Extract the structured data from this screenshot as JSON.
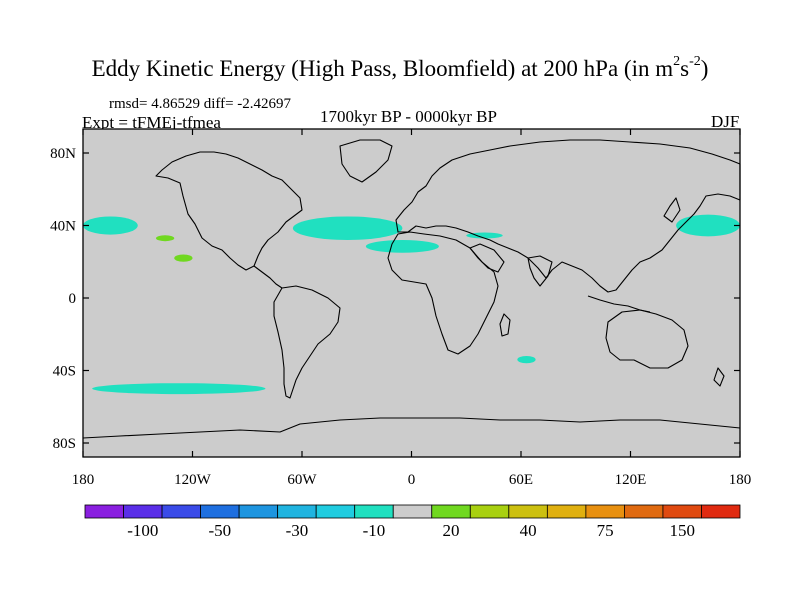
{
  "header": {
    "title_main": "Eddy Kinetic Energy (High Pass, Bloomfield) at 200 hPa (in m",
    "title_sup1": "2",
    "title_s": "s",
    "title_sup2": "-2",
    "title_close": ")",
    "stats": "rmsd= 4.86529 diff= -2.42697",
    "expt": "Expt = tFMEj-tfmea",
    "period": "1700kyr BP - 0000kyr BP",
    "season": "DJF"
  },
  "chart_data": {
    "type": "heatmap",
    "title": "Eddy Kinetic Energy (High Pass, Bloomfield) at 200 hPa (in m^2 s^-2)",
    "variable": "Eddy Kinetic Energy difference",
    "units": "m2 s-2",
    "level": "200 hPa",
    "projection": "cylindrical equidistant",
    "x_axis": {
      "range": [
        -180,
        180
      ],
      "ticks": [
        -180,
        -120,
        -60,
        0,
        60,
        120,
        180
      ],
      "tick_labels": [
        "180",
        "120W",
        "60W",
        "0",
        "60E",
        "120E",
        "180"
      ]
    },
    "y_axis": {
      "range": [
        -90,
        90
      ],
      "ticks": [
        80,
        40,
        0,
        -40,
        -80
      ],
      "tick_labels": [
        "80N",
        "40N",
        "0",
        "40S",
        "80S"
      ]
    },
    "colorbar": {
      "colors": [
        "#8a1fe0",
        "#5a2ee8",
        "#3a4be8",
        "#1e6fe0",
        "#1e95e0",
        "#20b4e0",
        "#20cce0",
        "#20e0c0",
        "#cccccc",
        "#70d820",
        "#a8d010",
        "#ccc010",
        "#e0b010",
        "#e89010",
        "#e06a10",
        "#e04a10",
        "#e02a10"
      ],
      "labels": [
        "-100",
        "-50",
        "-30",
        "-10",
        "20",
        "40",
        "75",
        "150"
      ]
    },
    "features": [
      {
        "name": "North Pacific east",
        "lon": [
          -180,
          -150
        ],
        "lat": [
          35,
          45
        ],
        "value_class": "-10"
      },
      {
        "name": "North Pacific west",
        "lon": [
          145,
          180
        ],
        "lat": [
          34,
          46
        ],
        "value_class": "-10"
      },
      {
        "name": "North Atlantic",
        "lon": [
          -65,
          -5
        ],
        "lat": [
          32,
          45
        ],
        "value_class": "-10"
      },
      {
        "name": "Mediterranean",
        "lon": [
          -25,
          15
        ],
        "lat": [
          25,
          32
        ],
        "value_class": "-10"
      },
      {
        "name": "Middle East",
        "lon": [
          30,
          50
        ],
        "lat": [
          33,
          36
        ],
        "value_class": "-10"
      },
      {
        "name": "South Pacific",
        "lon": [
          -175,
          -80
        ],
        "lat": [
          -53,
          -47
        ],
        "value_class": "-10"
      },
      {
        "name": "South Indian",
        "lon": [
          58,
          68
        ],
        "lat": [
          -36,
          -32
        ],
        "value_class": "-10"
      },
      {
        "name": "Subtropical Pacific",
        "lon": [
          -140,
          -130
        ],
        "lat": [
          32,
          34
        ],
        "value_class": "20"
      },
      {
        "name": "Hawaii region",
        "lon": [
          -130,
          -120
        ],
        "lat": [
          20,
          24
        ],
        "value_class": "20"
      }
    ]
  }
}
